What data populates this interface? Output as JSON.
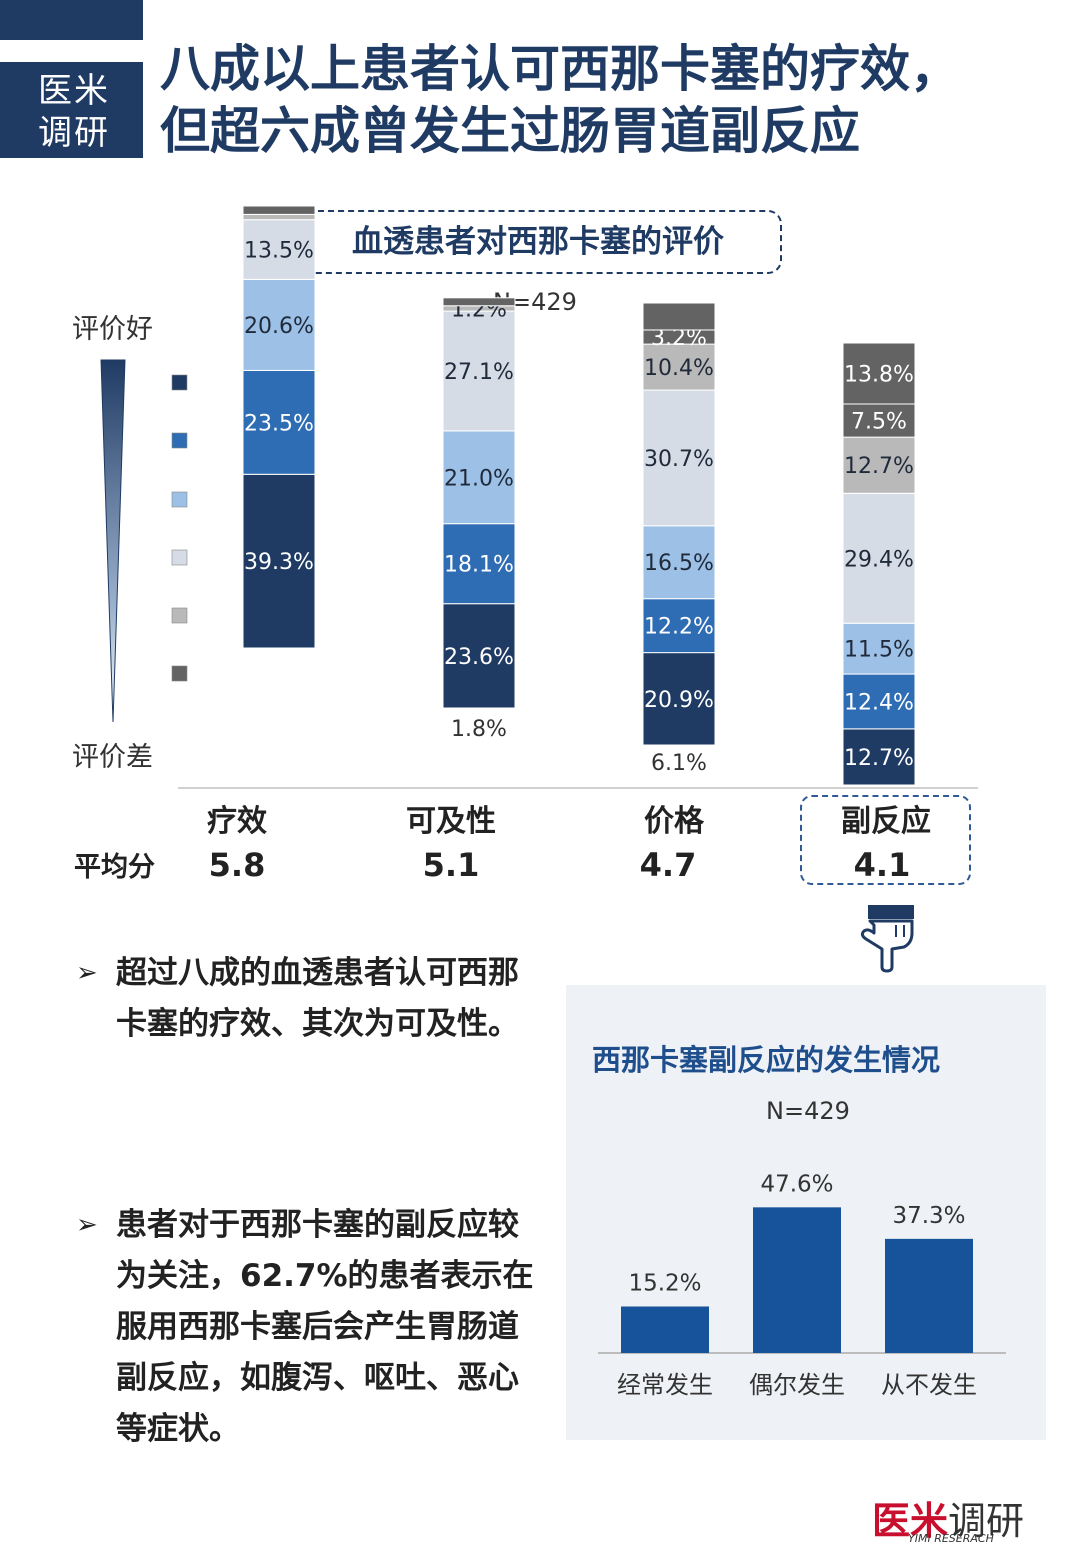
{
  "brand": {
    "line1": "医米",
    "line2": "调研"
  },
  "headline": {
    "line1": "八成以上患者认可西那卡塞的疗效，",
    "line2": "但超六成曾发生过肠胃道副反应"
  },
  "chart1": {
    "title": "血透患者对西那卡塞的评价",
    "n": "N=429",
    "top_label": "评价好",
    "bottom_label": "评价差"
  },
  "colors": {
    "c1": "#1f3b64",
    "c2": "#2e6db4",
    "c3": "#9dc0e6",
    "c4": "#d6dce6",
    "c5": "#b9b9b9",
    "c6": "#636363",
    "panel_bar": "#17539b"
  },
  "average": {
    "label": "平均分",
    "items": [
      {
        "category": "疗效",
        "score": "5.8"
      },
      {
        "category": "可及性",
        "score": "5.1"
      },
      {
        "category": "价格",
        "score": "4.7"
      },
      {
        "category": "副反应",
        "score": "4.1"
      }
    ]
  },
  "bullets": [
    {
      "marker": "➢",
      "text": "超过八成的血透患者认可西那卡塞的疗效、其次为可及性。"
    },
    {
      "marker": "➢",
      "text": "患者对于西那卡塞的副反应较为关注，62.7%的患者表示在服用西那卡塞后会产生胃肠道副反应，如腹泻、呕吐、恶心等症状。"
    }
  ],
  "panel": {
    "title": "西那卡塞副反应的发生情况",
    "n": "N=429"
  },
  "chart_data": [
    {
      "type": "bar",
      "stacked": true,
      "categories": [
        "疗效",
        "可及性",
        "价格",
        "副反应"
      ],
      "series": [
        {
          "values": [
            39.3,
            23.6,
            20.9,
            12.7
          ],
          "labels": [
            "39.3%",
            "23.6%",
            "20.9%",
            "12.7%"
          ]
        },
        {
          "values": [
            23.5,
            18.1,
            12.2,
            12.4
          ],
          "labels": [
            "23.5%",
            "18.1%",
            "12.2%",
            "12.4%"
          ]
        },
        {
          "values": [
            20.6,
            21.0,
            16.5,
            11.5
          ],
          "labels": [
            "20.6%",
            "21.0%",
            "16.5%",
            "11.5%"
          ]
        },
        {
          "values": [
            13.5,
            27.1,
            30.7,
            29.4
          ],
          "labels": [
            "13.5%",
            "27.1%",
            "30.7%",
            "29.4%"
          ]
        },
        {
          "values": [
            1.2,
            1.2,
            10.4,
            12.7
          ],
          "labels": [
            "",
            "1.2%",
            "10.4%",
            "12.7%"
          ]
        },
        {
          "values": [
            1.9,
            1.8,
            3.2,
            7.5
          ],
          "labels": [
            "",
            "1.8%",
            "3.2%",
            "7.5%"
          ]
        },
        {
          "values": [
            0,
            0,
            6.1,
            13.8
          ],
          "labels": [
            "",
            "",
            "6.1%",
            "13.8%"
          ]
        }
      ],
      "ylim": [
        0,
        100
      ]
    },
    {
      "type": "bar",
      "categories": [
        "经常发生",
        "偶尔发生",
        "从不发生"
      ],
      "values": [
        15.2,
        47.6,
        37.3
      ],
      "labels": [
        "15.2%",
        "47.6%",
        "37.3%"
      ],
      "ylim": [
        0,
        50
      ]
    }
  ]
}
